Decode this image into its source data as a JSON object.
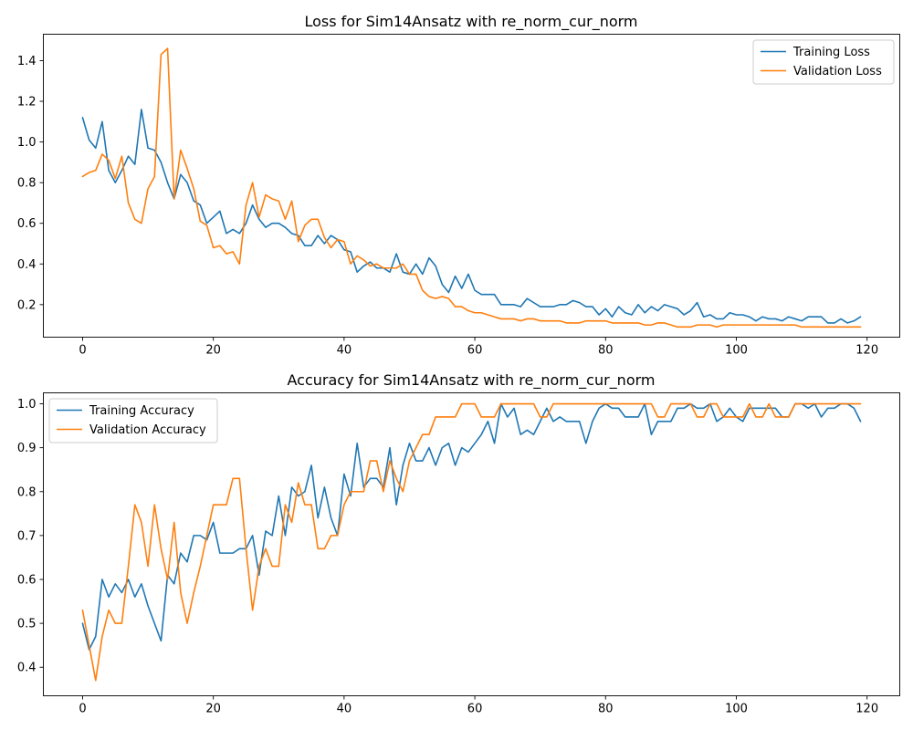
{
  "chart_data": [
    {
      "type": "line",
      "title": "Loss for Sim14Ansatz with re_norm_cur_norm",
      "xlabel": "",
      "ylabel": "",
      "xlim": [
        -6,
        125
      ],
      "ylim": [
        0.04,
        1.53
      ],
      "xticks": [
        0,
        20,
        40,
        60,
        80,
        100,
        120
      ],
      "yticks": [
        0.2,
        0.4,
        0.6,
        0.8,
        1.0,
        1.2,
        1.4
      ],
      "ytick_labels": [
        "0.2",
        "0.4",
        "0.6",
        "0.8",
        "1.0",
        "1.2",
        "1.4"
      ],
      "grid": false,
      "legend_position": "top-right",
      "series": [
        {
          "name": "Training Loss",
          "color": "#1f77b4",
          "values": [
            1.12,
            1.01,
            0.97,
            1.1,
            0.86,
            0.8,
            0.86,
            0.93,
            0.89,
            1.16,
            0.97,
            0.96,
            0.9,
            0.8,
            0.72,
            0.84,
            0.8,
            0.71,
            0.69,
            0.6,
            0.63,
            0.66,
            0.55,
            0.57,
            0.55,
            0.6,
            0.69,
            0.62,
            0.58,
            0.6,
            0.6,
            0.58,
            0.55,
            0.54,
            0.49,
            0.49,
            0.54,
            0.5,
            0.54,
            0.52,
            0.47,
            0.46,
            0.36,
            0.39,
            0.41,
            0.38,
            0.38,
            0.36,
            0.45,
            0.36,
            0.35,
            0.4,
            0.35,
            0.43,
            0.39,
            0.3,
            0.26,
            0.34,
            0.28,
            0.35,
            0.27,
            0.25,
            0.25,
            0.25,
            0.2,
            0.2,
            0.2,
            0.19,
            0.23,
            0.21,
            0.19,
            0.19,
            0.19,
            0.2,
            0.2,
            0.22,
            0.21,
            0.19,
            0.19,
            0.15,
            0.18,
            0.14,
            0.19,
            0.16,
            0.15,
            0.2,
            0.16,
            0.19,
            0.17,
            0.2,
            0.19,
            0.18,
            0.15,
            0.17,
            0.21,
            0.14,
            0.15,
            0.13,
            0.13,
            0.16,
            0.15,
            0.15,
            0.14,
            0.12,
            0.14,
            0.13,
            0.13,
            0.12,
            0.14,
            0.13,
            0.12,
            0.14,
            0.14,
            0.14,
            0.11,
            0.11,
            0.13,
            0.11,
            0.12,
            0.14
          ]
        },
        {
          "name": "Validation Loss",
          "color": "#ff7f0e",
          "values": [
            0.83,
            0.85,
            0.86,
            0.94,
            0.91,
            0.82,
            0.93,
            0.7,
            0.62,
            0.6,
            0.77,
            0.83,
            1.43,
            1.46,
            0.72,
            0.96,
            0.87,
            0.77,
            0.61,
            0.59,
            0.48,
            0.49,
            0.45,
            0.46,
            0.4,
            0.69,
            0.8,
            0.63,
            0.74,
            0.72,
            0.71,
            0.62,
            0.71,
            0.51,
            0.59,
            0.62,
            0.62,
            0.53,
            0.48,
            0.52,
            0.51,
            0.4,
            0.44,
            0.42,
            0.39,
            0.4,
            0.38,
            0.38,
            0.38,
            0.4,
            0.35,
            0.35,
            0.27,
            0.24,
            0.23,
            0.24,
            0.23,
            0.19,
            0.19,
            0.17,
            0.16,
            0.16,
            0.15,
            0.14,
            0.13,
            0.13,
            0.13,
            0.12,
            0.13,
            0.13,
            0.12,
            0.12,
            0.12,
            0.12,
            0.11,
            0.11,
            0.11,
            0.12,
            0.12,
            0.12,
            0.12,
            0.11,
            0.11,
            0.11,
            0.11,
            0.11,
            0.1,
            0.1,
            0.11,
            0.11,
            0.1,
            0.09,
            0.09,
            0.09,
            0.1,
            0.1,
            0.1,
            0.09,
            0.1,
            0.1,
            0.1,
            0.1,
            0.1,
            0.1,
            0.1,
            0.1,
            0.1,
            0.1,
            0.1,
            0.1,
            0.09,
            0.09,
            0.09,
            0.09,
            0.09,
            0.09,
            0.09,
            0.09,
            0.09,
            0.09
          ]
        }
      ]
    },
    {
      "type": "line",
      "title": "Accuracy for Sim14Ansatz with re_norm_cur_norm",
      "xlabel": "",
      "ylabel": "",
      "xlim": [
        -6,
        125
      ],
      "ylim": [
        0.335,
        1.025
      ],
      "xticks": [
        0,
        20,
        40,
        60,
        80,
        100,
        120
      ],
      "yticks": [
        0.4,
        0.5,
        0.6,
        0.7,
        0.8,
        0.9,
        1.0
      ],
      "ytick_labels": [
        "0.4",
        "0.5",
        "0.6",
        "0.7",
        "0.8",
        "0.9",
        "1.0"
      ],
      "grid": false,
      "legend_position": "top-left",
      "series": [
        {
          "name": "Training Accuracy",
          "color": "#1f77b4",
          "values": [
            0.5,
            0.44,
            0.47,
            0.6,
            0.56,
            0.59,
            0.57,
            0.6,
            0.56,
            0.59,
            0.54,
            0.5,
            0.46,
            0.61,
            0.59,
            0.66,
            0.64,
            0.7,
            0.7,
            0.69,
            0.73,
            0.66,
            0.66,
            0.66,
            0.67,
            0.67,
            0.7,
            0.61,
            0.71,
            0.7,
            0.79,
            0.7,
            0.81,
            0.79,
            0.8,
            0.86,
            0.74,
            0.81,
            0.74,
            0.7,
            0.84,
            0.79,
            0.91,
            0.81,
            0.83,
            0.83,
            0.81,
            0.9,
            0.77,
            0.86,
            0.91,
            0.87,
            0.87,
            0.9,
            0.86,
            0.9,
            0.91,
            0.86,
            0.9,
            0.89,
            0.91,
            0.93,
            0.96,
            0.91,
            1.0,
            0.97,
            0.99,
            0.93,
            0.94,
            0.93,
            0.96,
            0.99,
            0.96,
            0.97,
            0.96,
            0.96,
            0.96,
            0.91,
            0.96,
            0.99,
            1.0,
            0.99,
            0.99,
            0.97,
            0.97,
            0.97,
            1.0,
            0.93,
            0.96,
            0.96,
            0.96,
            0.99,
            0.99,
            1.0,
            0.99,
            0.99,
            1.0,
            0.96,
            0.97,
            0.99,
            0.97,
            0.96,
            0.99,
            0.99,
            0.99,
            0.99,
            0.99,
            0.97,
            0.97,
            1.0,
            1.0,
            0.99,
            1.0,
            0.97,
            0.99,
            0.99,
            1.0,
            1.0,
            0.99,
            0.96
          ]
        },
        {
          "name": "Validation Accuracy",
          "color": "#ff7f0e",
          "values": [
            0.53,
            0.45,
            0.37,
            0.47,
            0.53,
            0.5,
            0.5,
            0.63,
            0.77,
            0.73,
            0.63,
            0.77,
            0.67,
            0.6,
            0.73,
            0.57,
            0.5,
            0.57,
            0.63,
            0.7,
            0.77,
            0.77,
            0.77,
            0.83,
            0.83,
            0.67,
            0.53,
            0.63,
            0.67,
            0.63,
            0.63,
            0.77,
            0.73,
            0.82,
            0.77,
            0.77,
            0.67,
            0.67,
            0.7,
            0.7,
            0.77,
            0.8,
            0.8,
            0.8,
            0.87,
            0.87,
            0.8,
            0.87,
            0.83,
            0.8,
            0.87,
            0.9,
            0.93,
            0.93,
            0.97,
            0.97,
            0.97,
            0.97,
            1.0,
            1.0,
            1.0,
            0.97,
            0.97,
            0.97,
            1.0,
            1.0,
            1.0,
            1.0,
            1.0,
            1.0,
            0.97,
            0.97,
            1.0,
            1.0,
            1.0,
            1.0,
            1.0,
            1.0,
            1.0,
            1.0,
            1.0,
            1.0,
            1.0,
            1.0,
            1.0,
            1.0,
            1.0,
            1.0,
            0.97,
            0.97,
            1.0,
            1.0,
            1.0,
            1.0,
            0.97,
            0.97,
            1.0,
            1.0,
            0.97,
            0.97,
            0.97,
            0.97,
            1.0,
            0.97,
            0.97,
            1.0,
            0.97,
            0.97,
            0.97,
            1.0,
            1.0,
            1.0,
            1.0,
            1.0,
            1.0,
            1.0,
            1.0,
            1.0,
            1.0,
            1.0
          ]
        }
      ]
    }
  ]
}
